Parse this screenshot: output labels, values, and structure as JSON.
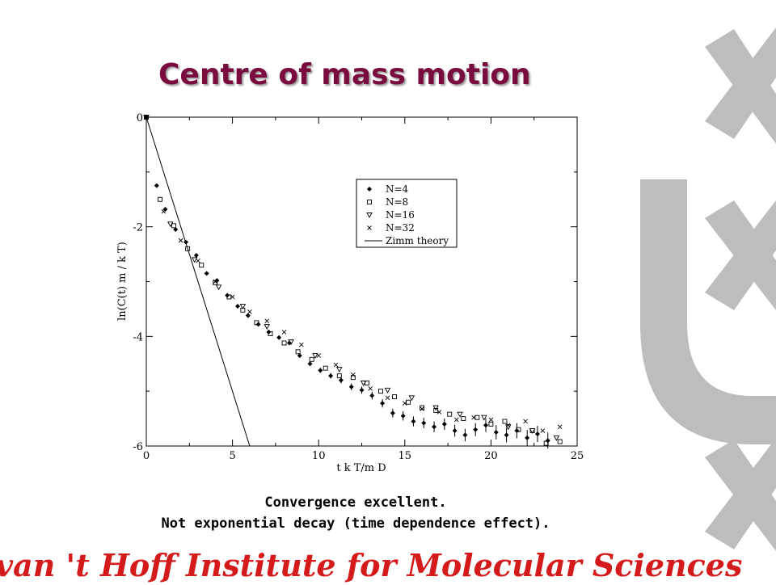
{
  "slide": {
    "title": "Centre of mass motion",
    "captions": [
      "Convergence excellent.",
      "Not exponential decay (time dependence effect)."
    ],
    "footer": "van 't Hoff Institute for Molecular Sciences",
    "logo_icon": "uva-logo-icon",
    "colors": {
      "title": "#7a0b3e",
      "footer": "#d41a1a",
      "logo": "#bdbdbd"
    }
  },
  "chart_data": {
    "type": "scatter",
    "title": "",
    "xlabel": "t k T/m D",
    "ylabel": "ln(C(t) m / k T)",
    "xlim": [
      0,
      25
    ],
    "ylim": [
      -6,
      0
    ],
    "xticks": [
      0,
      5,
      10,
      15,
      20,
      25
    ],
    "yticks": [
      0,
      -2,
      -4,
      -6
    ],
    "legend_position": "top-right",
    "series": [
      {
        "name": "N=4",
        "marker": "diamond",
        "x": [
          0,
          0.6,
          1.1,
          1.7,
          2.3,
          2.9,
          3.5,
          4.1,
          4.7,
          5.3,
          5.9,
          6.5,
          7.1,
          7.7,
          8.3,
          8.9,
          9.5,
          10.1,
          10.7,
          11.3,
          11.9,
          12.5,
          13.1,
          13.7,
          14.3,
          14.9,
          15.5,
          16.1,
          16.7,
          17.3,
          17.9,
          18.5,
          19.1,
          19.7,
          20.3,
          20.9,
          21.5,
          22.1,
          22.7,
          23.3
        ],
        "y": [
          0,
          -1.25,
          -1.68,
          -2.05,
          -2.28,
          -2.52,
          -2.85,
          -2.98,
          -3.25,
          -3.45,
          -3.62,
          -3.78,
          -3.92,
          -4.02,
          -4.12,
          -4.35,
          -4.5,
          -4.62,
          -4.72,
          -4.8,
          -4.92,
          -4.98,
          -5.08,
          -5.22,
          -5.4,
          -5.45,
          -5.55,
          -5.58,
          -5.65,
          -5.6,
          -5.72,
          -5.8,
          -5.7,
          -5.62,
          -5.75,
          -5.8,
          -5.72,
          -5.85,
          -5.78,
          -5.9
        ]
      },
      {
        "name": "N=8",
        "marker": "square",
        "x": [
          0,
          0.8,
          1.6,
          2.4,
          3.2,
          4.0,
          4.8,
          5.6,
          6.4,
          7.2,
          8.0,
          8.8,
          9.6,
          10.4,
          11.2,
          12.0,
          12.8,
          13.6,
          14.4,
          15.2,
          16.0,
          16.8,
          17.6,
          18.4,
          19.2,
          20.0,
          20.8,
          21.6,
          22.4,
          23.2,
          24.0
        ],
        "y": [
          0,
          -1.5,
          -1.98,
          -2.4,
          -2.7,
          -3.02,
          -3.28,
          -3.52,
          -3.75,
          -3.95,
          -4.12,
          -4.28,
          -4.42,
          -4.58,
          -4.72,
          -4.75,
          -4.85,
          -5.0,
          -5.1,
          -5.2,
          -5.3,
          -5.35,
          -5.42,
          -5.5,
          -5.48,
          -5.6,
          -5.55,
          -5.7,
          -5.72,
          -5.95,
          -5.92
        ]
      },
      {
        "name": "N=16",
        "marker": "triangle",
        "x": [
          0,
          1.4,
          2.8,
          4.2,
          5.6,
          7.0,
          8.4,
          9.8,
          11.2,
          12.6,
          14.0,
          15.4,
          16.8,
          18.2,
          19.6,
          21.0,
          22.4,
          23.8
        ],
        "y": [
          0,
          -1.95,
          -2.6,
          -3.1,
          -3.45,
          -3.82,
          -4.1,
          -4.35,
          -4.6,
          -4.85,
          -4.98,
          -5.12,
          -5.3,
          -5.42,
          -5.48,
          -5.65,
          -5.72,
          -5.85
        ]
      },
      {
        "name": "N=32",
        "marker": "cross",
        "x": [
          0,
          1.0,
          2.0,
          3.0,
          4.0,
          5.0,
          6.0,
          7.0,
          8.0,
          9.0,
          10.0,
          11.0,
          12.0,
          13.0,
          14.0,
          15.0,
          16.0,
          17.0,
          18.0,
          19.0,
          20.0,
          21.0,
          22.0,
          23.0,
          24.0
        ],
        "y": [
          0,
          -1.72,
          -2.25,
          -2.62,
          -3.0,
          -3.28,
          -3.55,
          -3.72,
          -3.92,
          -4.15,
          -4.35,
          -4.52,
          -4.7,
          -4.95,
          -5.12,
          -5.22,
          -5.32,
          -5.38,
          -5.52,
          -5.48,
          -5.52,
          -5.62,
          -5.55,
          -5.72,
          -5.65
        ]
      }
    ],
    "lines": [
      {
        "name": "Zimm theory",
        "x": [
          0,
          6.0
        ],
        "y": [
          0,
          -6
        ]
      }
    ]
  }
}
